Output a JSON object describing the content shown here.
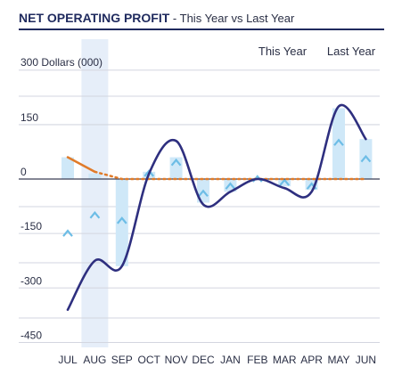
{
  "title": {
    "main": "NET OPERATING PROFIT",
    "sep": " - ",
    "sub": "This Year vs Last Year"
  },
  "chart_data": {
    "type": "bar",
    "categories": [
      "JUL",
      "AUG",
      "SEP",
      "OCT",
      "NOV",
      "DEC",
      "JAN",
      "FEB",
      "MAR",
      "APR",
      "MAY",
      "JUN"
    ],
    "unit_label": "300 Dollars (000)",
    "y_ticks": [
      {
        "value": 150,
        "label": "150"
      },
      {
        "value": 0,
        "label": "0"
      },
      {
        "value": -150,
        "label": "-150"
      },
      {
        "value": -300,
        "label": "-300"
      },
      {
        "value": -450,
        "label": "-450"
      }
    ],
    "ylim": [
      -450,
      300
    ],
    "legend": [
      "This Year",
      "Last Year"
    ],
    "highlighted_category": "AUG",
    "bars": [
      60,
      15,
      -240,
      20,
      60,
      -65,
      -35,
      0,
      -20,
      -30,
      195,
      110
    ],
    "markers": [
      -150,
      -100,
      -115,
      15,
      45,
      -40,
      -20,
      0,
      -10,
      -20,
      100,
      55
    ],
    "series": [
      {
        "name": "This Year",
        "values": [
          -360,
          -225,
          -240,
          15,
          105,
          -70,
          -35,
          0,
          -25,
          -35,
          200,
          110
        ],
        "color": "#2e2f7f"
      },
      {
        "name": "Last Year",
        "values": [
          60,
          20,
          0,
          0,
          0,
          0,
          0,
          0,
          0,
          0,
          0,
          0
        ],
        "color": "#e07b2a"
      }
    ],
    "colors": {
      "bar": "#cfe8f8",
      "marker": "#6dbde6",
      "highlight": "#e6eef9",
      "grid": "#d3d6e0",
      "axis": "#3a3f55"
    }
  }
}
